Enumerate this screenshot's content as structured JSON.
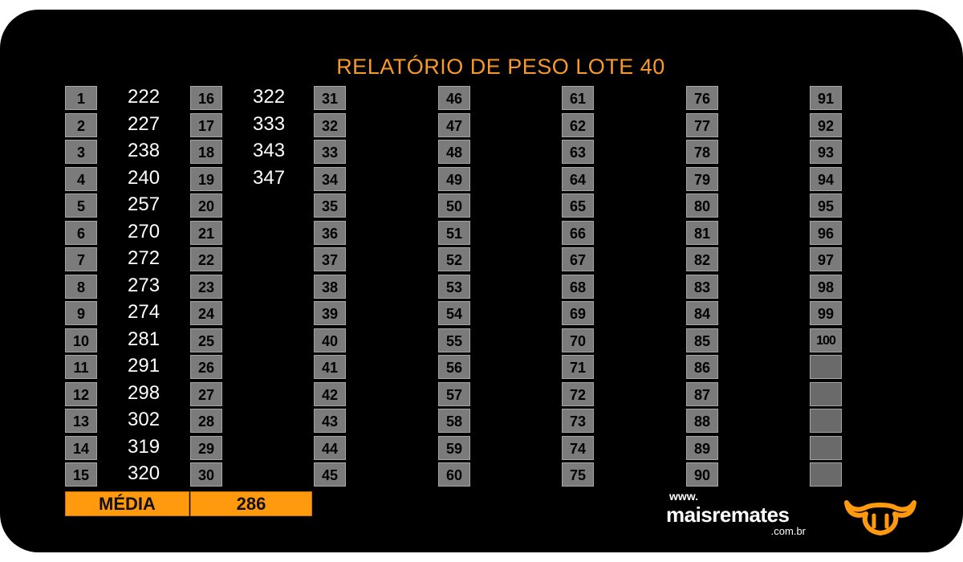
{
  "title": "RELATÓRIO DE PESO LOTE 40",
  "columns": [
    {
      "numbers": [
        "1",
        "2",
        "3",
        "4",
        "5",
        "6",
        "7",
        "8",
        "9",
        "10",
        "11",
        "12",
        "13",
        "14",
        "15"
      ],
      "values": [
        "222",
        "227",
        "238",
        "240",
        "257",
        "270",
        "272",
        "273",
        "274",
        "281",
        "291",
        "298",
        "302",
        "319",
        "320"
      ]
    },
    {
      "numbers": [
        "16",
        "17",
        "18",
        "19",
        "20",
        "21",
        "22",
        "23",
        "24",
        "25",
        "26",
        "27",
        "28",
        "29",
        "30"
      ],
      "values": [
        "322",
        "333",
        "343",
        "347",
        "",
        "",
        "",
        "",
        "",
        "",
        "",
        "",
        "",
        "",
        ""
      ]
    },
    {
      "numbers": [
        "31",
        "32",
        "33",
        "34",
        "35",
        "36",
        "37",
        "38",
        "39",
        "40",
        "41",
        "42",
        "43",
        "44",
        "45"
      ],
      "values": []
    },
    {
      "numbers": [
        "46",
        "47",
        "48",
        "49",
        "50",
        "51",
        "52",
        "53",
        "54",
        "55",
        "56",
        "57",
        "58",
        "59",
        "60"
      ],
      "values": []
    },
    {
      "numbers": [
        "61",
        "62",
        "63",
        "64",
        "65",
        "66",
        "67",
        "68",
        "69",
        "70",
        "71",
        "72",
        "73",
        "74",
        "75"
      ],
      "values": []
    },
    {
      "numbers": [
        "76",
        "77",
        "78",
        "79",
        "80",
        "81",
        "82",
        "83",
        "84",
        "85",
        "86",
        "87",
        "88",
        "89",
        "90"
      ],
      "values": []
    },
    {
      "numbers": [
        "91",
        "92",
        "93",
        "94",
        "95",
        "96",
        "97",
        "98",
        "99",
        "100",
        "",
        "",
        "",
        "",
        ""
      ],
      "values": []
    }
  ],
  "summary": {
    "label": "MÉDIA",
    "value": "286"
  },
  "logo": {
    "www": "www.",
    "brand": "maisremates",
    "domain": ".com.br"
  },
  "colors": {
    "accent": "#ff9a0e",
    "title": "#f79a2a",
    "cell": "#7b7b7b",
    "background": "#000000"
  }
}
